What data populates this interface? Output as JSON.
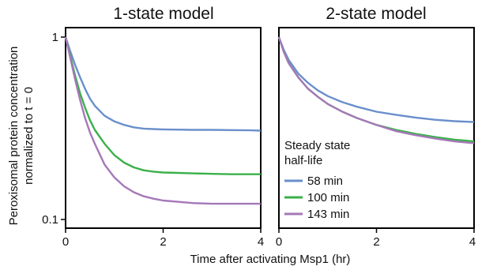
{
  "chart_data": [
    {
      "type": "line",
      "title": "1-state model",
      "xlabel": "Time after activating Msp1 (hr)",
      "ylabel_line1": "Peroxisomal protein concentration",
      "ylabel_line2": "normalized to t = 0",
      "xlim": [
        0,
        4
      ],
      "ylim": [
        0.09,
        1.1
      ],
      "yscale": "log",
      "x_ticks": [
        0,
        2,
        4
      ],
      "x_tick_labels": [
        "0",
        "2",
        "4"
      ],
      "y_ticks": [
        1,
        0.1
      ],
      "y_tick_labels": [
        "1",
        "0.1"
      ],
      "series": [
        {
          "color": "#6a8fcb",
          "x": [
            0,
            0.1,
            0.2,
            0.3,
            0.4,
            0.5,
            0.6,
            0.8,
            1.0,
            1.2,
            1.4,
            1.6,
            1.8,
            2.0,
            2.3,
            2.6,
            3.0,
            3.4,
            3.8,
            4.0
          ],
          "y": [
            1.0,
            0.83,
            0.7,
            0.6,
            0.52,
            0.46,
            0.42,
            0.37,
            0.345,
            0.33,
            0.32,
            0.315,
            0.313,
            0.312,
            0.311,
            0.31,
            0.31,
            0.309,
            0.308,
            0.307
          ]
        },
        {
          "color": "#3bb04a",
          "x": [
            0,
            0.1,
            0.2,
            0.3,
            0.4,
            0.5,
            0.6,
            0.8,
            1.0,
            1.2,
            1.4,
            1.6,
            1.8,
            2.0,
            2.3,
            2.6,
            3.0,
            3.4,
            3.8,
            4.0
          ],
          "y": [
            1.0,
            0.78,
            0.61,
            0.49,
            0.41,
            0.35,
            0.31,
            0.26,
            0.225,
            0.205,
            0.193,
            0.186,
            0.183,
            0.181,
            0.18,
            0.179,
            0.178,
            0.177,
            0.177,
            0.177
          ]
        },
        {
          "color": "#a578b8",
          "x": [
            0,
            0.1,
            0.2,
            0.3,
            0.4,
            0.5,
            0.6,
            0.8,
            1.0,
            1.2,
            1.4,
            1.6,
            1.8,
            2.0,
            2.3,
            2.6,
            3.0,
            3.4,
            3.8,
            4.0
          ],
          "y": [
            1.0,
            0.76,
            0.58,
            0.45,
            0.36,
            0.3,
            0.26,
            0.2,
            0.17,
            0.152,
            0.141,
            0.134,
            0.13,
            0.127,
            0.125,
            0.123,
            0.122,
            0.122,
            0.122,
            0.122
          ]
        }
      ]
    },
    {
      "type": "line",
      "title": "2-state model",
      "xlabel": "Time after activating Msp1 (hr)",
      "xlim": [
        0,
        4
      ],
      "ylim": [
        0.09,
        1.1
      ],
      "yscale": "log",
      "x_ticks": [
        0,
        2,
        4
      ],
      "x_tick_labels": [
        "0",
        "2",
        "4"
      ],
      "legend_title_line1": "Steady state",
      "legend_title_line2": "half-life",
      "legend_placement": "bottom-left",
      "series": [
        {
          "name": "58 min",
          "color": "#6a8fcb",
          "x": [
            0,
            0.1,
            0.2,
            0.4,
            0.6,
            0.8,
            1.0,
            1.3,
            1.6,
            2.0,
            2.4,
            2.8,
            3.2,
            3.6,
            4.0
          ],
          "y": [
            1.0,
            0.85,
            0.75,
            0.63,
            0.56,
            0.51,
            0.475,
            0.44,
            0.415,
            0.39,
            0.375,
            0.362,
            0.352,
            0.346,
            0.342
          ]
        },
        {
          "name": "100 min",
          "color": "#3bb04a",
          "x": [
            0,
            0.1,
            0.2,
            0.4,
            0.6,
            0.8,
            1.0,
            1.3,
            1.6,
            2.0,
            2.4,
            2.8,
            3.2,
            3.6,
            4.0
          ],
          "y": [
            1.0,
            0.83,
            0.72,
            0.6,
            0.52,
            0.47,
            0.43,
            0.39,
            0.36,
            0.33,
            0.31,
            0.295,
            0.283,
            0.274,
            0.268
          ]
        },
        {
          "name": "143 min",
          "color": "#a578b8",
          "x": [
            0,
            0.1,
            0.2,
            0.4,
            0.6,
            0.8,
            1.0,
            1.3,
            1.6,
            2.0,
            2.4,
            2.8,
            3.2,
            3.6,
            4.0
          ],
          "y": [
            1.0,
            0.83,
            0.72,
            0.6,
            0.52,
            0.47,
            0.43,
            0.39,
            0.36,
            0.33,
            0.305,
            0.29,
            0.278,
            0.268,
            0.262
          ]
        }
      ]
    }
  ]
}
